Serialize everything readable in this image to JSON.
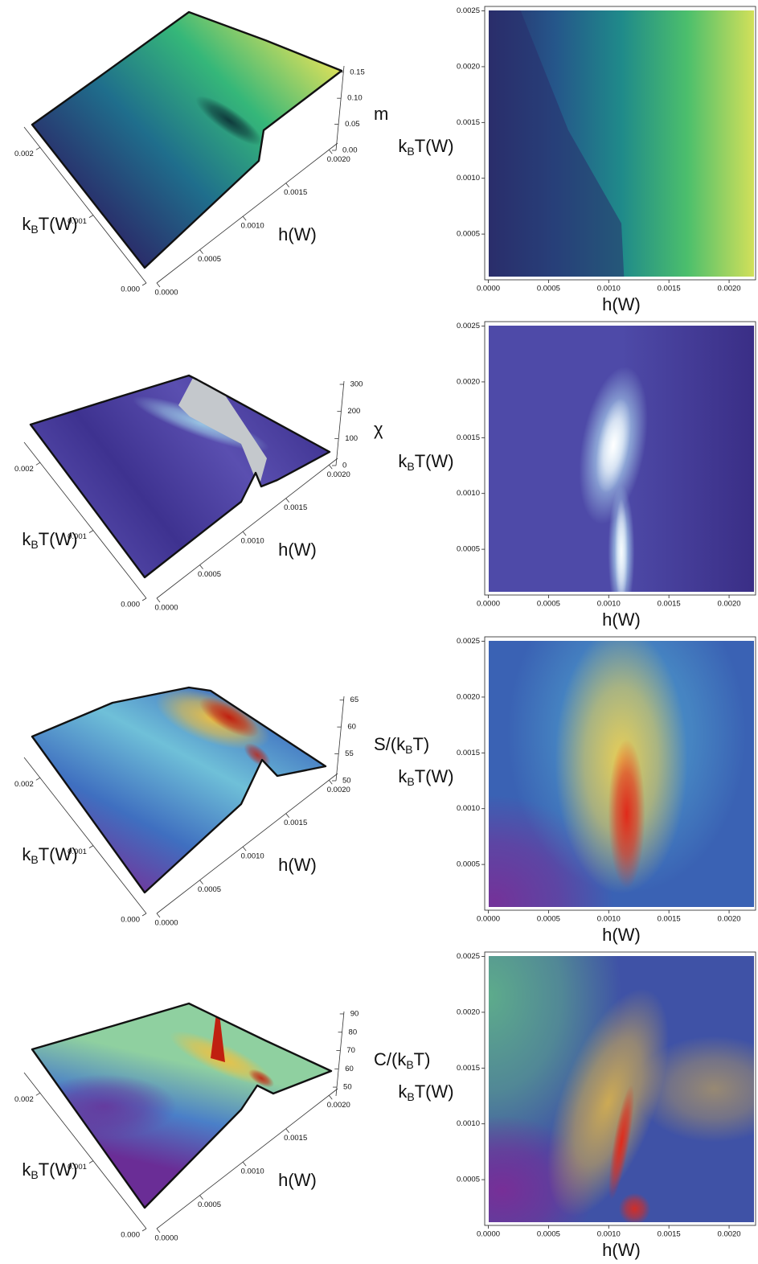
{
  "chart_data": [
    {
      "type": "surface3d",
      "xlabel": "h(W)",
      "ylabel": "kBT(W)",
      "zlabel": "m",
      "xlim": [
        0,
        0.0021
      ],
      "ylim": [
        0,
        0.0023
      ],
      "zlim": [
        0,
        0.162
      ],
      "xticks": [
        {
          "value": 0,
          "label": "0.0000"
        },
        0.0005,
        {
          "value": 0.001,
          "label": "0.0010"
        },
        0.0015,
        {
          "value": 0.002,
          "label": "0.0020"
        }
      ],
      "yticks": [
        {
          "value": 0,
          "label": "0.000"
        },
        0.001,
        0.002
      ],
      "zticks": [
        {
          "value": 0,
          "label": "0.00"
        },
        0.05,
        {
          "value": 0.1,
          "label": "0.10"
        },
        0.15
      ],
      "colors": [
        "#2a2e6b",
        "#1f6e8c",
        "#35b779",
        "#dde05a"
      ]
    },
    {
      "type": "density",
      "xlabel": "h(W)",
      "ylabel": "kBT(W)",
      "xlim": [
        -3e-05,
        0.00222
      ],
      "ylim": [
        9e-05,
        0.00254
      ],
      "xticks": [
        {
          "value": 0,
          "label": "0.0000"
        },
        0.0005,
        {
          "value": 0.001,
          "label": "0.0010"
        },
        0.0015,
        {
          "value": 0.002,
          "label": "0.0020"
        }
      ],
      "yticks": [
        0.0005,
        {
          "value": 0.001,
          "label": "0.0010"
        },
        0.0015,
        {
          "value": 0.002,
          "label": "0.0020"
        },
        0.0025
      ],
      "colors": [
        "#2a2e6b",
        "#25568a",
        "#1f8a8a",
        "#4cbf6c",
        "#d2e05a"
      ]
    },
    {
      "type": "surface3d",
      "xlabel": "h(W)",
      "ylabel": "kBT(W)",
      "zlabel": "χ",
      "xlim": [
        0,
        0.0021
      ],
      "ylim": [
        0,
        0.0023
      ],
      "zlim": [
        0,
        312
      ],
      "xticks": [
        {
          "value": 0,
          "label": "0.0000"
        },
        0.0005,
        {
          "value": 0.001,
          "label": "0.0010"
        },
        0.0015,
        {
          "value": 0.002,
          "label": "0.0020"
        }
      ],
      "yticks": [
        {
          "value": 0,
          "label": "0.000"
        },
        0.001,
        0.002
      ],
      "zticks": [
        0,
        100,
        200,
        300
      ],
      "colors": [
        "#3e3290",
        "#5a4fb0",
        "#9fd0e8",
        "#c4c8cc"
      ]
    },
    {
      "type": "density",
      "xlabel": "h(W)",
      "ylabel": "kBT(W)",
      "xlim": [
        -3e-05,
        0.00222
      ],
      "ylim": [
        9e-05,
        0.00254
      ],
      "xticks": [
        {
          "value": 0,
          "label": "0.0000"
        },
        0.0005,
        {
          "value": 0.001,
          "label": "0.0010"
        },
        0.0015,
        {
          "value": 0.002,
          "label": "0.0020"
        }
      ],
      "yticks": [
        0.0005,
        {
          "value": 0.001,
          "label": "0.0010"
        },
        0.0015,
        {
          "value": 0.002,
          "label": "0.0020"
        },
        0.0025
      ],
      "colors": [
        "#4e4aa8",
        "#3a2e86",
        "#b9e6f7",
        "#ffffff"
      ]
    },
    {
      "type": "surface3d",
      "xlabel": "h(W)",
      "ylabel": "kBT(W)",
      "zlabel": "S/(kBT)",
      "xlim": [
        0,
        0.0021
      ],
      "ylim": [
        0,
        0.0023
      ],
      "zlim": [
        50,
        65.7
      ],
      "xticks": [
        {
          "value": 0,
          "label": "0.0000"
        },
        0.0005,
        {
          "value": 0.001,
          "label": "0.0010"
        },
        0.0015,
        {
          "value": 0.002,
          "label": "0.0020"
        }
      ],
      "yticks": [
        {
          "value": 0,
          "label": "0.000"
        },
        0.001,
        0.002
      ],
      "zticks": [
        50,
        55,
        60,
        65
      ],
      "colors": [
        "#7a2d96",
        "#3f6fc0",
        "#6fc0d8",
        "#f0c040",
        "#c02010"
      ]
    },
    {
      "type": "density",
      "xlabel": "h(W)",
      "ylabel": "kBT(W)",
      "xlim": [
        -3e-05,
        0.00222
      ],
      "ylim": [
        9e-05,
        0.00254
      ],
      "xticks": [
        {
          "value": 0,
          "label": "0.0000"
        },
        0.0005,
        {
          "value": 0.001,
          "label": "0.0010"
        },
        0.0015,
        {
          "value": 0.002,
          "label": "0.0020"
        }
      ],
      "yticks": [
        0.0005,
        {
          "value": 0.001,
          "label": "0.0010"
        },
        0.0015,
        {
          "value": 0.002,
          "label": "0.0020"
        },
        0.0025
      ],
      "colors": [
        "#3a62b4",
        "#7a2d96",
        "#52a8d0",
        "#f0d050",
        "#e02a1a"
      ]
    },
    {
      "type": "surface3d",
      "xlabel": "h(W)",
      "ylabel": "kBT(W)",
      "zlabel": "C/(kBT)",
      "xlim": [
        0,
        0.0021
      ],
      "ylim": [
        0,
        0.0023
      ],
      "zlim": [
        45.2,
        91.3
      ],
      "xticks": [
        {
          "value": 0,
          "label": "0.0000"
        },
        0.0005,
        {
          "value": 0.001,
          "label": "0.0010"
        },
        0.0015,
        {
          "value": 0.002,
          "label": "0.0020"
        }
      ],
      "yticks": [
        {
          "value": 0,
          "label": "0.000"
        },
        0.001,
        0.002
      ],
      "zticks": [
        50,
        60,
        70,
        80,
        90
      ],
      "colors": [
        "#6a2d96",
        "#4a7fc8",
        "#8fd0a0",
        "#f0c040",
        "#c02010"
      ]
    },
    {
      "type": "density",
      "xlabel": "h(W)",
      "ylabel": "kBT(W)",
      "xlim": [
        -3e-05,
        0.00222
      ],
      "ylim": [
        9e-05,
        0.00254
      ],
      "xticks": [
        {
          "value": 0,
          "label": "0.0000"
        },
        0.0005,
        {
          "value": 0.001,
          "label": "0.0010"
        },
        0.0015,
        {
          "value": 0.002,
          "label": "0.0020"
        }
      ],
      "yticks": [
        0.0005,
        {
          "value": 0.001,
          "label": "0.0010"
        },
        0.0015,
        {
          "value": 0.002,
          "label": "0.0020"
        },
        0.0025
      ],
      "colors": [
        "#3f52a6",
        "#5fb08a",
        "#7a2d96",
        "#f0c040",
        "#e02a1a"
      ]
    }
  ]
}
